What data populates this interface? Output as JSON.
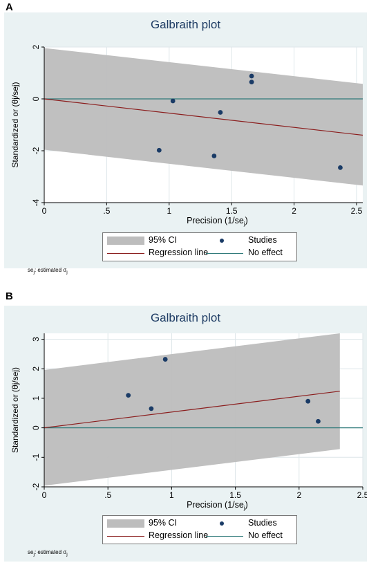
{
  "colors": {
    "panel_bg": "#eaf2f3",
    "plot_bg": "#ffffff",
    "ci_band": "#bdbdbd",
    "regression_line": "#8b1e1e",
    "no_effect_line": "#2f7a7a",
    "studies_marker": "#1a3b66",
    "title": "#1e3c64",
    "grid": "#dde6e9"
  },
  "legend": {
    "ci_label": "95% CI",
    "studies_label": "Studies",
    "regression_label": "Regression line",
    "no_effect_label": "No effect"
  },
  "note": {
    "text": "se",
    "sub1": "j",
    "rest": ": estimated σ",
    "sub2": "j"
  },
  "chart_data": [
    {
      "panel_label": "A",
      "type": "scatter",
      "title": "Galbraith plot",
      "xlabel": "Precision (1/se",
      "xlabel_sub": "j",
      "xlabel_end": ")",
      "ylabel": "Standardized or  (θj/sej)",
      "xlim": [
        0,
        2.55
      ],
      "ylim": [
        -4,
        2
      ],
      "xticks": [
        0,
        0.5,
        1,
        1.5,
        2,
        2.5
      ],
      "xtick_labels": [
        "0",
        ".5",
        "1",
        "1.5",
        "2",
        "2.5"
      ],
      "yticks": [
        -4,
        -2,
        0,
        2
      ],
      "ytick_labels": [
        "-4",
        "-2",
        "0",
        "2"
      ],
      "grid": true,
      "legend_position": "bottom",
      "ci_band": {
        "x": [
          0,
          2.55
        ],
        "upper": [
          1.96,
          0.58
        ],
        "lower": [
          -1.96,
          -3.34
        ]
      },
      "regression_line": {
        "x": [
          0,
          2.55
        ],
        "y": [
          0,
          -1.4
        ]
      },
      "no_effect": 0,
      "studies": {
        "x": [
          0.92,
          1.03,
          1.36,
          1.41,
          1.66,
          1.66,
          2.37
        ],
        "y": [
          -1.98,
          -0.08,
          -2.2,
          -0.52,
          0.65,
          0.88,
          -2.65
        ]
      }
    },
    {
      "panel_label": "B",
      "type": "scatter",
      "title": "Galbraith plot",
      "xlabel": "Precision (1/se",
      "xlabel_sub": "j",
      "xlabel_end": ")",
      "ylabel": "Standardized or  (θj/sej)",
      "xlim": [
        0,
        2.5
      ],
      "ylim": [
        -2,
        3.2
      ],
      "xticks": [
        0,
        0.5,
        1,
        1.5,
        2,
        2.5
      ],
      "xtick_labels": [
        "0",
        ".5",
        "1",
        "1.5",
        "2",
        "2.5"
      ],
      "yticks": [
        -2,
        -1,
        0,
        1,
        2,
        3
      ],
      "ytick_labels": [
        "-2",
        "-1",
        "0",
        "1",
        "2",
        "3"
      ],
      "grid": true,
      "legend_position": "bottom",
      "ci_band": {
        "x": [
          0,
          2.32
        ],
        "upper": [
          1.96,
          3.2
        ],
        "lower": [
          -1.96,
          -0.72
        ]
      },
      "regression_line": {
        "x": [
          0,
          2.32
        ],
        "y": [
          0,
          1.24
        ]
      },
      "no_effect": 0,
      "studies": {
        "x": [
          0.66,
          0.84,
          0.95,
          2.07,
          2.15
        ],
        "y": [
          1.1,
          0.65,
          2.32,
          0.9,
          0.22
        ]
      }
    }
  ]
}
